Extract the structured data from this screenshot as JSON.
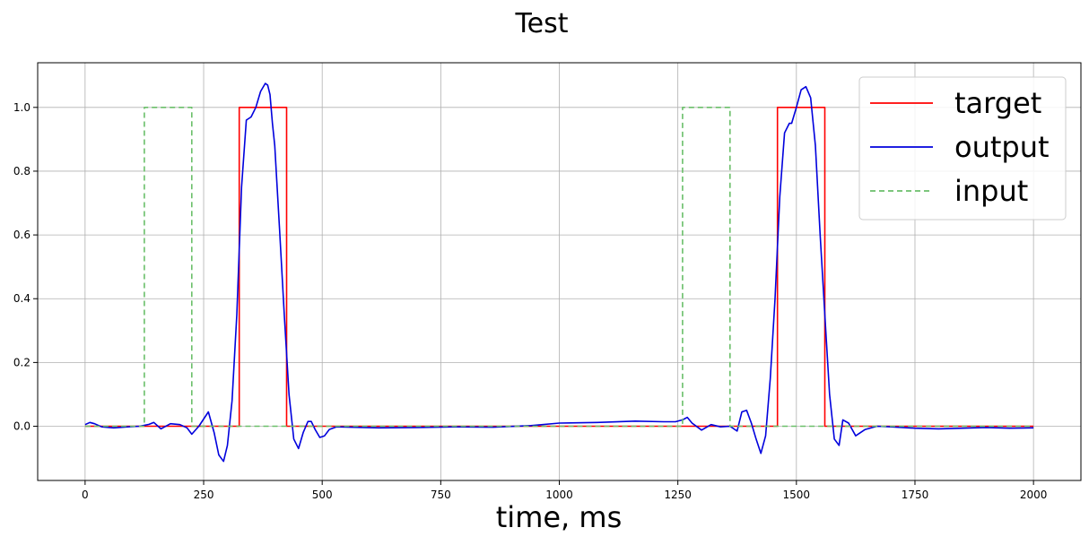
{
  "chart_data": {
    "type": "line",
    "title": "Test",
    "xlabel": "time, ms",
    "ylabel": "",
    "xlim": [
      -100,
      2100
    ],
    "ylim": [
      -0.17,
      1.14
    ],
    "xticks": [
      0,
      250,
      500,
      750,
      1000,
      1250,
      1500,
      1750,
      2000
    ],
    "yticks": [
      0.0,
      0.2,
      0.4,
      0.6,
      0.8,
      1.0
    ],
    "xtick_labels": [
      "0",
      "250",
      "500",
      "750",
      "1000",
      "1250",
      "1500",
      "1750",
      "2000"
    ],
    "ytick_labels": [
      "0.0",
      "0.2",
      "0.4",
      "0.6",
      "0.8",
      "1.0"
    ],
    "grid": true,
    "legend_position": "top-right",
    "series": [
      {
        "name": "target",
        "color": "#ff0000",
        "style": "solid",
        "x": [
          0,
          325,
          325,
          425,
          425,
          1460,
          1460,
          1560,
          1560,
          2000
        ],
        "y": [
          0,
          0,
          1,
          1,
          0,
          0,
          1,
          1,
          0,
          0
        ]
      },
      {
        "name": "output",
        "color": "#0000dd",
        "style": "solid",
        "x": [
          0,
          10,
          20,
          35,
          60,
          90,
          115,
          135,
          145,
          160,
          180,
          200,
          215,
          225,
          240,
          260,
          272,
          282,
          292,
          300,
          310,
          320,
          330,
          340,
          350,
          360,
          370,
          380,
          385,
          390,
          395,
          400,
          410,
          420,
          430,
          440,
          450,
          460,
          470,
          477,
          485,
          495,
          505,
          515,
          530,
          560,
          620,
          700,
          780,
          860,
          940,
          1000,
          1080,
          1160,
          1220,
          1245,
          1260,
          1270,
          1280,
          1300,
          1320,
          1340,
          1360,
          1375,
          1385,
          1395,
          1405,
          1415,
          1425,
          1435,
          1445,
          1455,
          1465,
          1475,
          1485,
          1490,
          1500,
          1510,
          1520,
          1530,
          1540,
          1550,
          1560,
          1570,
          1580,
          1590,
          1598,
          1610,
          1625,
          1645,
          1670,
          1700,
          1750,
          1800,
          1850,
          1900,
          1950,
          2000
        ],
        "y": [
          0.005,
          0.012,
          0.008,
          -0.002,
          -0.005,
          -0.002,
          0.0,
          0.006,
          0.012,
          -0.008,
          0.008,
          0.005,
          -0.005,
          -0.025,
          0.0,
          0.045,
          -0.02,
          -0.09,
          -0.11,
          -0.06,
          0.08,
          0.35,
          0.75,
          0.96,
          0.97,
          1.0,
          1.05,
          1.075,
          1.07,
          1.04,
          0.95,
          0.88,
          0.62,
          0.35,
          0.1,
          -0.04,
          -0.07,
          -0.02,
          0.015,
          0.015,
          -0.01,
          -0.035,
          -0.03,
          -0.01,
          -0.002,
          -0.003,
          -0.005,
          -0.004,
          -0.002,
          -0.003,
          0.002,
          0.01,
          0.012,
          0.016,
          0.014,
          0.014,
          0.02,
          0.028,
          0.01,
          -0.012,
          0.005,
          -0.002,
          0.0,
          -0.015,
          0.045,
          0.05,
          0.01,
          -0.04,
          -0.085,
          -0.03,
          0.15,
          0.4,
          0.72,
          0.92,
          0.95,
          0.95,
          1.0,
          1.055,
          1.065,
          1.03,
          0.88,
          0.6,
          0.35,
          0.1,
          -0.04,
          -0.06,
          0.02,
          0.01,
          -0.03,
          -0.01,
          0.0,
          -0.002,
          -0.006,
          -0.008,
          -0.006,
          -0.004,
          -0.006,
          -0.005
        ]
      },
      {
        "name": "input",
        "color": "#6abf69",
        "style": "dashed",
        "x": [
          0,
          125,
          125,
          225,
          225,
          1260,
          1260,
          1360,
          1360,
          2000
        ],
        "y": [
          0,
          0,
          1,
          1,
          0,
          0,
          1,
          1,
          0,
          0
        ]
      }
    ]
  }
}
